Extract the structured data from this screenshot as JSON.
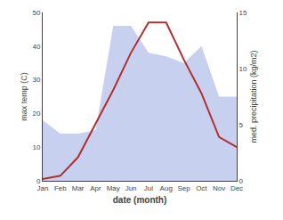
{
  "chart_data": {
    "type": "line",
    "xlabel": "date (month)",
    "ylabel": "max temp (C)",
    "y2label": "med. precipitation (kg/m2)",
    "categories": [
      "Jan",
      "Feb",
      "Mar",
      "Apr",
      "May",
      "Jun",
      "Jul",
      "Aug",
      "Sep",
      "Oct",
      "Nov",
      "Dec"
    ],
    "series": [
      {
        "type": "area",
        "color": "#c8d0f0",
        "values": [
          18,
          14,
          14,
          15,
          46,
          46,
          38,
          37,
          35,
          40,
          25,
          25
        ]
      },
      {
        "type": "line",
        "color": "#b03030",
        "values": [
          0.5,
          1.5,
          7,
          17,
          27,
          38,
          47,
          47,
          36,
          26,
          13,
          10
        ]
      }
    ],
    "ylim": [
      0,
      50
    ],
    "yticks": [
      0,
      10,
      20,
      30,
      40,
      50
    ],
    "y2lim": [
      0,
      15
    ],
    "y2ticks": [
      0,
      5,
      10,
      15
    ],
    "grid": false
  }
}
